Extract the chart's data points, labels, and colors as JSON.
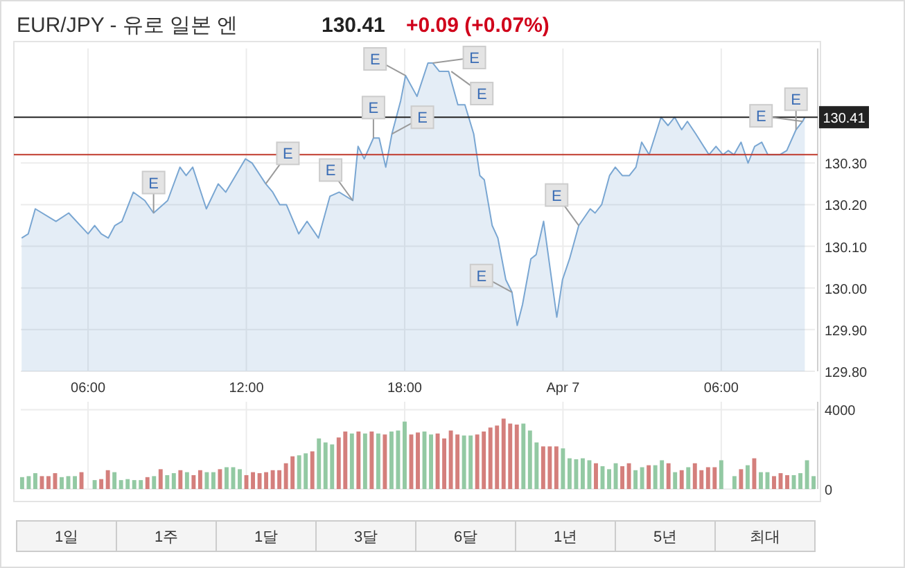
{
  "chart_data": [
    {
      "type": "area",
      "title": "EUR/JPY - 유로 일본 엔",
      "color": "#79a6d2",
      "x": [
        "--04-06T03:29",
        "--04-06T03:44",
        "--04-06T04:00",
        "--04-06T04:47",
        "--04-06T05:16",
        "--04-06T06:00",
        "--04-06T06:15",
        "--04-06T06:30",
        "--04-06T06:46",
        "--04-06T07:01",
        "--04-06T07:17",
        "--04-06T07:43",
        "--04-06T08:09",
        "--04-06T08:29",
        "--04-06T09:01",
        "--04-06T09:29",
        "--04-06T09:43",
        "--04-06T09:58",
        "--04-06T10:29",
        "--04-06T10:56",
        "--04-06T11:13",
        "--04-06T11:58",
        "--04-06T12:13",
        "--04-06T12:44",
        "--04-06T13:00",
        "--04-06T13:16",
        "--04-06T13:31",
        "--04-06T13:59",
        "--04-06T14:18",
        "--04-06T14:44",
        "--04-06T15:10",
        "--04-06T15:31",
        "--04-06T16:02",
        "--04-06T16:14",
        "--04-06T16:28",
        "--04-06T16:49",
        "--04-06T17:02",
        "--04-06T17:17",
        "--04-06T17:31",
        "--04-06T17:51",
        "--04-06T18:02",
        "--04-06T18:28",
        "--04-06T18:53",
        "--04-06T19:04",
        "--04-06T19:19",
        "--04-06T19:40",
        "--04-06T20:01",
        "--04-06T20:17",
        "--04-06T20:37",
        "--04-06T20:51",
        "--04-06T21:01",
        "--04-06T21:19",
        "--04-06T21:32",
        "--04-06T21:50",
        "--04-06T22:04",
        "--04-06T22:16",
        "--04-06T22:28",
        "--04-06T22:47",
        "--04-06T22:59",
        "--04-06T23:16",
        "--04-06T23:46",
        "--04-06T23:59",
        "--04-07T00:15",
        "--04-07T00:36",
        "--04-07T01:02",
        "--04-07T01:13",
        "--04-07T01:28",
        "--04-07T01:46",
        "--04-07T01:59",
        "--04-07T02:15",
        "--04-07T02:31",
        "--04-07T02:46",
        "--04-07T02:59",
        "--04-07T03:16",
        "--04-07T03:43",
        "--04-07T03:59",
        "--04-07T04:14",
        "--04-07T04:30",
        "--04-07T04:43",
        "--04-07T05:02",
        "--04-07T05:32",
        "--04-07T05:48",
        "--04-07T06:04",
        "--04-07T06:16",
        "--04-07T06:29",
        "--04-07T06:45",
        "--04-07T07:01",
        "--04-07T07:16",
        "--04-07T07:32",
        "--04-07T07:46",
        "--04-07T08:13",
        "--04-07T08:29",
        "--04-07T08:50",
        "--04-07T09:05",
        "--04-07T09:10"
      ],
      "values": [
        130.12,
        130.13,
        130.19,
        130.16,
        130.18,
        130.13,
        130.15,
        130.13,
        130.12,
        130.15,
        130.16,
        130.23,
        130.21,
        130.18,
        130.21,
        130.29,
        130.27,
        130.29,
        130.19,
        130.25,
        130.23,
        130.31,
        130.3,
        130.25,
        130.23,
        130.2,
        130.2,
        130.13,
        130.16,
        130.12,
        130.22,
        130.23,
        130.21,
        130.34,
        130.31,
        130.36,
        130.36,
        130.29,
        130.37,
        130.45,
        130.51,
        130.46,
        130.54,
        130.54,
        130.52,
        130.52,
        130.44,
        130.44,
        130.37,
        130.27,
        130.26,
        130.15,
        130.12,
        130.02,
        129.99,
        129.91,
        129.96,
        130.07,
        130.08,
        130.16,
        129.93,
        130.02,
        130.07,
        130.15,
        130.19,
        130.18,
        130.2,
        130.27,
        130.29,
        130.27,
        130.27,
        130.29,
        130.35,
        130.32,
        130.41,
        130.39,
        130.41,
        130.38,
        130.4,
        130.37,
        130.32,
        130.34,
        130.32,
        130.33,
        130.32,
        130.35,
        130.3,
        130.34,
        130.35,
        130.32,
        130.32,
        130.33,
        130.38,
        130.4,
        130.41
      ],
      "xlim": [
        "--04-06T03:27",
        "--04-07T09:33"
      ],
      "ylim": [
        129.8,
        130.575
      ],
      "xticks": [
        {
          "value": "--04-06T06:00",
          "label": "06:00"
        },
        {
          "value": "--04-06T12:00",
          "label": "12:00"
        },
        {
          "value": "--04-06T18:00",
          "label": "18:00"
        },
        {
          "value": "--04-07T00:00",
          "label": "Apr 7"
        },
        {
          "value": "--04-07T06:00",
          "label": "06:00"
        }
      ],
      "yticks": [
        {
          "value": 129.8,
          "label": "129.80"
        },
        {
          "value": 129.9,
          "label": "129.90"
        },
        {
          "value": 130.0,
          "label": "130.00"
        },
        {
          "value": 130.1,
          "label": "130.10"
        },
        {
          "value": 130.2,
          "label": "130.20"
        },
        {
          "value": 130.3,
          "label": "130.30"
        }
      ],
      "grid": true,
      "ref_lines": [
        {
          "axis": "y",
          "value": 130.41,
          "label": "130.41",
          "color": "#222222"
        },
        {
          "axis": "y",
          "value": 130.32,
          "color": "#c0392b"
        }
      ],
      "annotations": [
        "130.41",
        "+0.09 (+0.07%)",
        {
          "text": "E",
          "x": "--04-06T08:29",
          "y": 130.18
        },
        {
          "text": "E",
          "x": "--04-06T12:44",
          "y": 130.25
        },
        {
          "text": "E",
          "x": "--04-06T16:02",
          "y": 130.21
        },
        {
          "text": "E",
          "x": "--04-06T16:49",
          "y": 130.36
        },
        {
          "text": "E",
          "x": "--04-06T17:31",
          "y": 130.37
        },
        {
          "text": "E",
          "x": "--04-06T18:02",
          "y": 130.51
        },
        {
          "text": "E",
          "x": "--04-06T19:04",
          "y": 130.54
        },
        {
          "text": "E",
          "x": "--04-06T19:46",
          "y": 130.52
        },
        {
          "text": "E",
          "x": "--04-06T22:04",
          "y": 129.99
        },
        {
          "text": "E",
          "x": "--04-07T00:36",
          "y": 130.15
        },
        {
          "text": "E",
          "x": "--04-07T08:50",
          "y": 130.38
        },
        {
          "text": "E",
          "x": "--04-07T09:05",
          "y": 130.4
        }
      ]
    },
    {
      "type": "bar",
      "x": [
        "--04-06T03:30",
        "--04-06T03:45",
        "--04-06T04:00",
        "--04-06T04:15",
        "--04-06T04:30",
        "--04-06T04:45",
        "--04-06T05:00",
        "--04-06T05:15",
        "--04-06T05:30",
        "--04-06T05:45",
        "--04-06T06:00",
        "--04-06T06:15",
        "--04-06T06:30",
        "--04-06T06:45",
        "--04-06T07:00",
        "--04-06T07:15",
        "--04-06T07:30",
        "--04-06T07:45",
        "--04-06T08:00",
        "--04-06T08:15",
        "--04-06T08:30",
        "--04-06T08:45",
        "--04-06T09:00",
        "--04-06T09:15",
        "--04-06T09:30",
        "--04-06T09:45",
        "--04-06T10:00",
        "--04-06T10:15",
        "--04-06T10:30",
        "--04-06T10:45",
        "--04-06T11:00",
        "--04-06T11:15",
        "--04-06T11:30",
        "--04-06T11:45",
        "--04-06T12:00",
        "--04-06T12:15",
        "--04-06T12:30",
        "--04-06T12:45",
        "--04-06T13:00",
        "--04-06T13:15",
        "--04-06T13:30",
        "--04-06T13:45",
        "--04-06T14:00",
        "--04-06T14:15",
        "--04-06T14:30",
        "--04-06T14:45",
        "--04-06T15:00",
        "--04-06T15:15",
        "--04-06T15:30",
        "--04-06T15:45",
        "--04-06T16:00",
        "--04-06T16:15",
        "--04-06T16:30",
        "--04-06T16:45",
        "--04-06T17:00",
        "--04-06T17:15",
        "--04-06T17:30",
        "--04-06T17:45",
        "--04-06T18:00",
        "--04-06T18:15",
        "--04-06T18:30",
        "--04-06T18:45",
        "--04-06T19:00",
        "--04-06T19:15",
        "--04-06T19:30",
        "--04-06T19:45",
        "--04-06T20:00",
        "--04-06T20:15",
        "--04-06T20:30",
        "--04-06T20:45",
        "--04-06T21:00",
        "--04-06T21:15",
        "--04-06T21:30",
        "--04-06T21:45",
        "--04-06T22:00",
        "--04-06T22:15",
        "--04-06T22:30",
        "--04-06T22:45",
        "--04-06T23:00",
        "--04-06T23:15",
        "--04-06T23:30",
        "--04-06T23:45",
        "--04-07T00:00",
        "--04-07T00:15",
        "--04-07T00:30",
        "--04-07T00:45",
        "--04-07T01:00",
        "--04-07T01:15",
        "--04-07T01:30",
        "--04-07T01:45",
        "--04-07T02:00",
        "--04-07T02:15",
        "--04-07T02:30",
        "--04-07T02:45",
        "--04-07T03:00",
        "--04-07T03:15",
        "--04-07T03:30",
        "--04-07T03:45",
        "--04-07T04:00",
        "--04-07T04:15",
        "--04-07T04:30",
        "--04-07T04:45",
        "--04-07T05:00",
        "--04-07T05:15",
        "--04-07T05:30",
        "--04-07T05:45",
        "--04-07T06:00",
        "--04-07T06:15",
        "--04-07T06:30",
        "--04-07T06:45",
        "--04-07T07:00",
        "--04-07T07:15",
        "--04-07T07:30",
        "--04-07T07:45",
        "--04-07T08:00",
        "--04-07T08:15",
        "--04-07T08:30",
        "--04-07T08:45",
        "--04-07T09:00",
        "--04-07T09:15",
        "--04-07T09:30"
      ],
      "values": [
        600,
        650,
        800,
        650,
        650,
        800,
        600,
        650,
        650,
        850,
        null,
        450,
        500,
        950,
        850,
        450,
        500,
        450,
        450,
        600,
        650,
        1000,
        700,
        800,
        950,
        850,
        700,
        950,
        850,
        850,
        1000,
        1100,
        1100,
        1000,
        700,
        850,
        800,
        850,
        950,
        950,
        1300,
        1650,
        1700,
        1800,
        1900,
        2550,
        2350,
        2250,
        2600,
        2900,
        2800,
        2900,
        2800,
        2900,
        2800,
        2750,
        2900,
        2950,
        3400,
        2750,
        2850,
        2900,
        2750,
        2800,
        2550,
        2950,
        2750,
        2700,
        2700,
        2750,
        2900,
        3100,
        3200,
        3550,
        3300,
        3250,
        3300,
        2950,
        2350,
        2150,
        2150,
        2150,
        2050,
        1550,
        1500,
        1550,
        1450,
        1300,
        1150,
        1000,
        1300,
        1150,
        1300,
        950,
        1100,
        1200,
        1200,
        1450,
        1300,
        850,
        950,
        1100,
        1300,
        950,
        1100,
        1100,
        1450,
        null,
        650,
        1000,
        1200,
        1550,
        850,
        850,
        650,
        800,
        700,
        700,
        800,
        1450,
        650
      ],
      "colors": [
        "#93c9a3",
        "#93c9a3",
        "#93c9a3",
        "#d47f7c",
        "#d47f7c",
        "#d47f7c",
        "#93c9a3",
        "#93c9a3",
        "#93c9a3",
        "#d47f7c",
        null,
        "#93c9a3",
        "#d47f7c",
        "#d47f7c",
        "#93c9a3",
        "#93c9a3",
        "#93c9a3",
        "#93c9a3",
        "#93c9a3",
        "#d47f7c",
        "#93c9a3",
        "#d47f7c",
        "#93c9a3",
        "#93c9a3",
        "#d47f7c",
        "#93c9a3",
        "#d47f7c",
        "#d47f7c",
        "#93c9a3",
        "#93c9a3",
        "#d47f7c",
        "#93c9a3",
        "#93c9a3",
        "#93c9a3",
        "#d47f7c",
        "#d47f7c",
        "#d47f7c",
        "#d47f7c",
        "#d47f7c",
        "#d47f7c",
        "#d47f7c",
        "#d47f7c",
        "#93c9a3",
        "#93c9a3",
        "#d47f7c",
        "#93c9a3",
        "#93c9a3",
        "#93c9a3",
        "#d47f7c",
        "#d47f7c",
        "#93c9a3",
        "#d47f7c",
        "#93c9a3",
        "#d47f7c",
        "#93c9a3",
        "#d47f7c",
        "#93c9a3",
        "#93c9a3",
        "#93c9a3",
        "#d47f7c",
        "#d47f7c",
        "#93c9a3",
        "#93c9a3",
        "#d47f7c",
        "#d47f7c",
        "#d47f7c",
        "#d47f7c",
        "#93c9a3",
        "#93c9a3",
        "#d47f7c",
        "#d47f7c",
        "#d47f7c",
        "#d47f7c",
        "#d47f7c",
        "#d47f7c",
        "#d47f7c",
        "#93c9a3",
        "#93c9a3",
        "#93c9a3",
        "#d47f7c",
        "#d47f7c",
        "#d47f7c",
        "#93c9a3",
        "#93c9a3",
        "#93c9a3",
        "#93c9a3",
        "#93c9a3",
        "#d47f7c",
        "#93c9a3",
        "#93c9a3",
        "#93c9a3",
        "#d47f7c",
        "#d47f7c",
        "#93c9a3",
        "#93c9a3",
        "#d47f7c",
        "#93c9a3",
        "#93c9a3",
        "#d47f7c",
        "#93c9a3",
        "#d47f7c",
        "#93c9a3",
        "#d47f7c",
        "#d47f7c",
        "#d47f7c",
        "#d47f7c",
        "#93c9a3",
        null,
        "#93c9a3",
        "#d47f7c",
        "#93c9a3",
        "#d47f7c",
        "#93c9a3",
        "#93c9a3",
        "#d47f7c",
        "#d47f7c",
        "#d47f7c",
        "#93c9a3",
        "#93c9a3",
        "#93c9a3",
        "#93c9a3"
      ],
      "xlim": [
        "--04-06T03:27",
        "--04-07T09:33"
      ],
      "ylim": [
        0,
        4400
      ],
      "yticks": [
        0,
        4000
      ],
      "grid": true,
      "tick_labels": "y",
      "annotations": [
        "1일",
        "1주",
        "1달",
        "3달",
        "6달",
        "1년",
        "5년",
        "최대"
      ]
    }
  ]
}
